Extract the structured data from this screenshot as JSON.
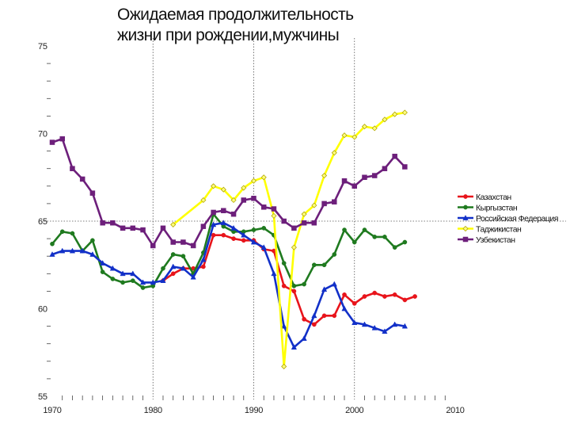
{
  "chart_data": {
    "type": "line",
    "title": [
      "Ожидаемая продолжительность",
      "жизни при рождении,мужчины"
    ],
    "xlabel": "",
    "ylabel": "",
    "xlim": [
      1970,
      2010
    ],
    "ylim": [
      55,
      75
    ],
    "x_ticks": [
      "1970",
      "1980",
      "1990",
      "2000",
      "2010"
    ],
    "y_ticks": [
      "55",
      "60",
      "65",
      "70",
      "75"
    ],
    "reference_lines": {
      "x": [
        1980,
        1990,
        2000
      ],
      "y": [
        65
      ]
    },
    "grid": false,
    "legend_position": "right",
    "series": [
      {
        "name": "Казахстан",
        "color": "#e8141b",
        "marker": "circle",
        "points": [
          [
            1981,
            61.6
          ],
          [
            1982,
            62.0
          ],
          [
            1983,
            62.3
          ],
          [
            1984,
            62.3
          ],
          [
            1985,
            62.4
          ],
          [
            1986,
            64.2
          ],
          [
            1987,
            64.2
          ],
          [
            1988,
            64.0
          ],
          [
            1989,
            63.9
          ],
          [
            1990,
            63.9
          ],
          [
            1991,
            63.4
          ],
          [
            1992,
            63.3
          ],
          [
            1993,
            61.3
          ],
          [
            1994,
            61.0
          ],
          [
            1995,
            59.4
          ],
          [
            1996,
            59.1
          ],
          [
            1997,
            59.6
          ],
          [
            1998,
            59.6
          ],
          [
            1999,
            60.8
          ],
          [
            2000,
            60.3
          ],
          [
            2001,
            60.7
          ],
          [
            2002,
            60.9
          ],
          [
            2003,
            60.7
          ],
          [
            2004,
            60.8
          ],
          [
            2005,
            60.5
          ],
          [
            2006,
            60.7
          ]
        ]
      },
      {
        "name": "Кыргызстан",
        "color": "#1f7a1f",
        "marker": "circle",
        "points": [
          [
            1970,
            63.7
          ],
          [
            1971,
            64.4
          ],
          [
            1972,
            64.3
          ],
          [
            1973,
            63.3
          ],
          [
            1974,
            63.9
          ],
          [
            1975,
            62.1
          ],
          [
            1976,
            61.7
          ],
          [
            1977,
            61.5
          ],
          [
            1978,
            61.6
          ],
          [
            1979,
            61.2
          ],
          [
            1980,
            61.3
          ],
          [
            1981,
            62.3
          ],
          [
            1982,
            63.1
          ],
          [
            1983,
            63.0
          ],
          [
            1984,
            62.0
          ],
          [
            1985,
            63.2
          ],
          [
            1986,
            65.4
          ],
          [
            1987,
            64.7
          ],
          [
            1988,
            64.4
          ],
          [
            1989,
            64.4
          ],
          [
            1990,
            64.5
          ],
          [
            1991,
            64.6
          ],
          [
            1992,
            64.2
          ],
          [
            1993,
            62.6
          ],
          [
            1994,
            61.3
          ],
          [
            1995,
            61.4
          ],
          [
            1996,
            62.5
          ],
          [
            1997,
            62.5
          ],
          [
            1998,
            63.1
          ],
          [
            1999,
            64.5
          ],
          [
            2000,
            63.8
          ],
          [
            2001,
            64.5
          ],
          [
            2002,
            64.1
          ],
          [
            2003,
            64.1
          ],
          [
            2004,
            63.5
          ],
          [
            2005,
            63.8
          ]
        ]
      },
      {
        "name": "Российская Федерация",
        "color": "#1230c8",
        "marker": "triangle",
        "points": [
          [
            1970,
            63.1
          ],
          [
            1971,
            63.3
          ],
          [
            1972,
            63.3
          ],
          [
            1973,
            63.3
          ],
          [
            1974,
            63.1
          ],
          [
            1975,
            62.6
          ],
          [
            1976,
            62.3
          ],
          [
            1977,
            62.0
          ],
          [
            1978,
            62.0
          ],
          [
            1979,
            61.5
          ],
          [
            1980,
            61.5
          ],
          [
            1981,
            61.6
          ],
          [
            1982,
            62.4
          ],
          [
            1983,
            62.3
          ],
          [
            1984,
            61.8
          ],
          [
            1985,
            62.8
          ],
          [
            1986,
            64.8
          ],
          [
            1987,
            64.9
          ],
          [
            1988,
            64.6
          ],
          [
            1989,
            64.2
          ],
          [
            1990,
            63.8
          ],
          [
            1991,
            63.5
          ],
          [
            1992,
            62.0
          ],
          [
            1993,
            59.0
          ],
          [
            1994,
            57.8
          ],
          [
            1995,
            58.3
          ],
          [
            1996,
            59.6
          ],
          [
            1997,
            61.1
          ],
          [
            1998,
            61.4
          ],
          [
            1999,
            60.0
          ],
          [
            2000,
            59.2
          ],
          [
            2001,
            59.1
          ],
          [
            2002,
            58.9
          ],
          [
            2003,
            58.7
          ],
          [
            2004,
            59.1
          ],
          [
            2005,
            59.0
          ]
        ]
      },
      {
        "name": "Таджикистан",
        "color": "#ffff00",
        "marker": "diamond",
        "points": [
          [
            1982,
            64.8
          ],
          [
            1985,
            66.2
          ],
          [
            1986,
            67.0
          ],
          [
            1987,
            66.8
          ],
          [
            1988,
            66.2
          ],
          [
            1989,
            66.9
          ],
          [
            1990,
            67.3
          ],
          [
            1991,
            67.5
          ],
          [
            1992,
            65.3
          ],
          [
            1993,
            56.7
          ],
          [
            1994,
            63.5
          ],
          [
            1995,
            65.4
          ],
          [
            1996,
            65.9
          ],
          [
            1997,
            67.6
          ],
          [
            1998,
            68.9
          ],
          [
            1999,
            69.9
          ],
          [
            2000,
            69.8
          ],
          [
            2001,
            70.4
          ],
          [
            2002,
            70.3
          ],
          [
            2003,
            70.8
          ],
          [
            2004,
            71.1
          ],
          [
            2005,
            71.2
          ]
        ]
      },
      {
        "name": "Узбекистан",
        "color": "#6d1f7b",
        "marker": "square",
        "points": [
          [
            1970,
            69.5
          ],
          [
            1971,
            69.7
          ],
          [
            1972,
            68.0
          ],
          [
            1973,
            67.4
          ],
          [
            1974,
            66.6
          ],
          [
            1975,
            64.9
          ],
          [
            1976,
            64.9
          ],
          [
            1977,
            64.6
          ],
          [
            1978,
            64.6
          ],
          [
            1979,
            64.5
          ],
          [
            1980,
            63.6
          ],
          [
            1981,
            64.6
          ],
          [
            1982,
            63.8
          ],
          [
            1983,
            63.8
          ],
          [
            1984,
            63.6
          ],
          [
            1985,
            64.7
          ],
          [
            1986,
            65.5
          ],
          [
            1987,
            65.6
          ],
          [
            1988,
            65.4
          ],
          [
            1989,
            66.2
          ],
          [
            1990,
            66.3
          ],
          [
            1991,
            65.8
          ],
          [
            1992,
            65.7
          ],
          [
            1993,
            65.0
          ],
          [
            1994,
            64.6
          ],
          [
            1995,
            64.9
          ],
          [
            1996,
            64.9
          ],
          [
            1997,
            66.0
          ],
          [
            1998,
            66.1
          ],
          [
            1999,
            67.3
          ],
          [
            2000,
            67.0
          ],
          [
            2001,
            67.5
          ],
          [
            2002,
            67.6
          ],
          [
            2003,
            68.0
          ],
          [
            2004,
            68.7
          ],
          [
            2005,
            68.1
          ]
        ]
      }
    ]
  }
}
